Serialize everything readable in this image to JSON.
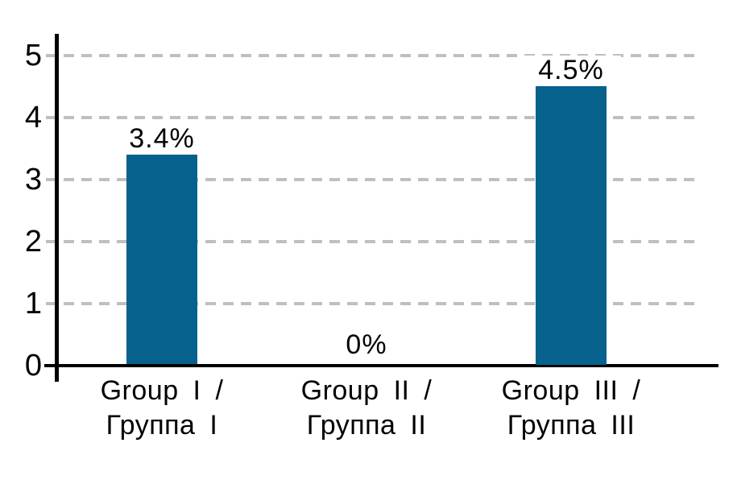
{
  "chart_data": {
    "type": "bar",
    "categories": [
      [
        "Group I /",
        "Группа I"
      ],
      [
        "Group II /",
        "Группа II"
      ],
      [
        "Group III /",
        "Группа III"
      ]
    ],
    "values": [
      3.4,
      0,
      4.5
    ],
    "value_labels": [
      "3.4%",
      "0%",
      "4.5%"
    ],
    "y_ticks": [
      "0",
      "1",
      "2",
      "3",
      "4",
      "5"
    ],
    "ylim": [
      0,
      5
    ],
    "xlabel": "",
    "ylabel": "",
    "legend": "none",
    "grid": "horizontal-dashed",
    "colors": {
      "bar": "#06618C",
      "gridline": "#BFBFBF",
      "axis": "#000000",
      "text": "#000000"
    }
  }
}
